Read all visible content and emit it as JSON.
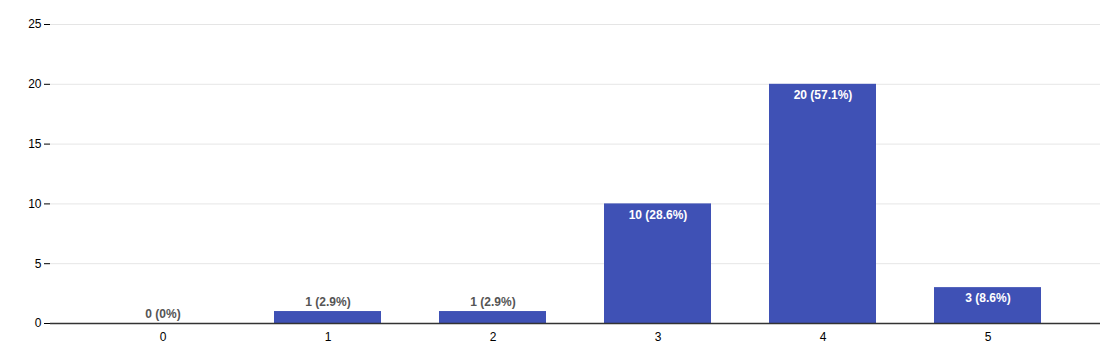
{
  "chart_data": {
    "type": "bar",
    "categories": [
      0,
      1,
      2,
      3,
      4,
      5
    ],
    "values": [
      0,
      1,
      1,
      10,
      20,
      3
    ],
    "value_labels": [
      "0 (0%)",
      "1 (2.9%)",
      "1 (2.9%)",
      "10 (28.6%)",
      "20 (57.1%)",
      "3 (8.6%)"
    ],
    "data_labels": true,
    "color": "#3f51b5",
    "ylim": [
      0,
      25
    ],
    "yticks": [
      0,
      5,
      10,
      15,
      20,
      25
    ],
    "grid": true
  }
}
